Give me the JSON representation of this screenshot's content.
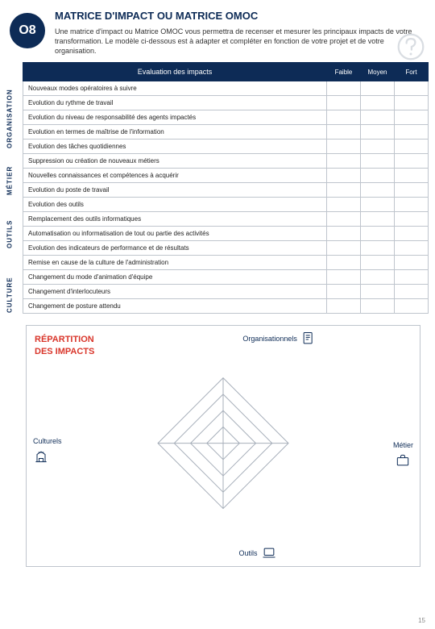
{
  "colors": {
    "primary": "#0d2b56",
    "accent": "#d9362b",
    "border": "#bfc5cd",
    "muted_icon": "#d9dde2"
  },
  "header": {
    "badge": "O8",
    "title": "MATRICE D'IMPACT OU MATRICE OMOC",
    "subtitle": "Une matrice d'impact ou Matrice OMOC vous permettra de recenser et mesurer les principaux impacts de votre transformation. Le modèle ci-dessous est à adapter et compléter en fonction de votre projet et de votre organisation."
  },
  "table": {
    "header_eval": "Evaluation des impacts",
    "header_ratings": [
      "Faible",
      "Moyen",
      "Fort"
    ],
    "categories": [
      {
        "label": "ORGANISATION",
        "rows": [
          "Nouveaux modes opératoires à suivre",
          "Evolution du rythme de travail",
          "Evolution du niveau de responsabilité des agents impactés",
          "Evolution en termes de maîtrise de l'information",
          "Evolution des tâches quotidiennes"
        ]
      },
      {
        "label": "MÉTIER",
        "rows": [
          "Suppression ou création de nouveaux métiers",
          "Nouvelles connaissances et compétences à acquérir",
          "Evolution du poste de travail"
        ]
      },
      {
        "label": "OUTILS",
        "rows": [
          "Evolution des outils",
          "Remplacement des outils informatiques",
          "Automatisation ou informatisation de tout ou partie des activités",
          "Evolution des indicateurs de performance et de résultats"
        ]
      },
      {
        "label": "CULTURE",
        "rows": [
          "Remise en cause de la culture de l'administration",
          "Changement du mode d'animation d'équipe",
          "Changement d'interlocuteurs",
          "Changement de posture attendu"
        ]
      }
    ]
  },
  "repartition": {
    "title_line1": "RÉPARTITION",
    "title_line2": "DES IMPACTS",
    "axes": {
      "top": "Organisationnels",
      "right": "Métier",
      "bottom": "Outils",
      "left": "Culturels"
    },
    "radar": {
      "type": "radar",
      "rings": 4,
      "size": 170,
      "grid_color": "#a7afba",
      "background_color": "#ffffff"
    }
  },
  "page_number": "15"
}
